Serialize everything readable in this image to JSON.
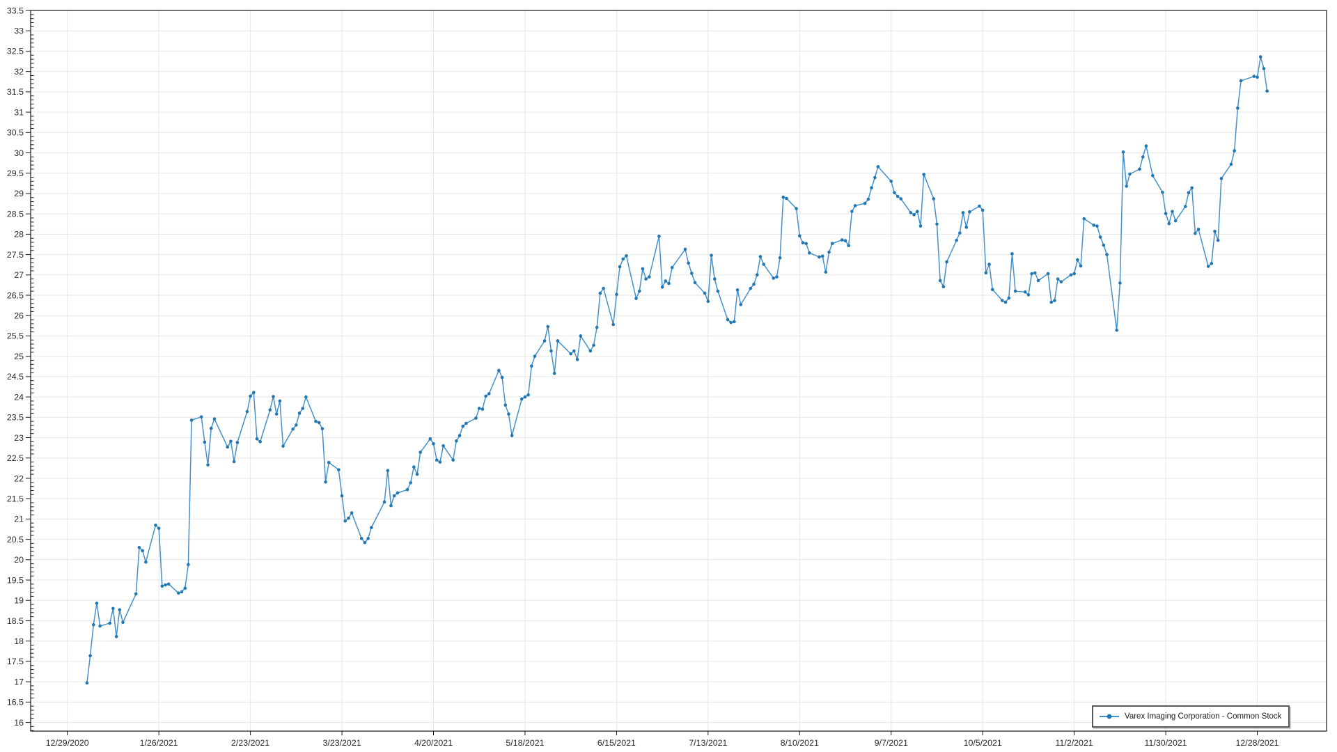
{
  "chart_data": {
    "type": "line",
    "title": "",
    "xlabel": "",
    "ylabel": "",
    "grid": true,
    "legend_position": "bottom-right",
    "ylim": [
      15.79,
      33.5
    ],
    "y_axis": {
      "min": 16,
      "max": 33.5,
      "major_step": 0.5,
      "minor_step": 0.1,
      "tick_labels": [
        "16",
        "16.5",
        "17",
        "17.5",
        "18",
        "18.5",
        "19",
        "19.5",
        "20",
        "20.5",
        "21",
        "21.5",
        "22",
        "22.5",
        "23",
        "23.5",
        "24",
        "24.5",
        "25",
        "25.5",
        "26",
        "26.5",
        "27",
        "27.5",
        "28",
        "28.5",
        "29",
        "29.5",
        "30",
        "30.5",
        "31",
        "31.5",
        "32",
        "32.5",
        "33",
        "33.5"
      ]
    },
    "x_axis": {
      "tick_interval_days": 28,
      "start_date": "2020-12-29",
      "tick_labels": [
        "12/29/2020",
        "1/26/2021",
        "2/23/2021",
        "3/23/2021",
        "4/20/2021",
        "5/18/2021",
        "6/15/2021",
        "7/13/2021",
        "8/10/2021",
        "9/7/2021",
        "10/5/2021",
        "11/2/2021",
        "11/30/2021",
        "12/28/2021"
      ]
    },
    "series": [
      {
        "name": "Varex Imaging Corporation - Common Stock",
        "line_color": "#4590c8",
        "marker_color": "#1f77b4",
        "points": [
          [
            "2021-01-04",
            16.97
          ],
          [
            "2021-01-05",
            17.64
          ],
          [
            "2021-01-06",
            18.4
          ],
          [
            "2021-01-07",
            18.93
          ],
          [
            "2021-01-08",
            18.37
          ],
          [
            "2021-01-11",
            18.44
          ],
          [
            "2021-01-12",
            18.8
          ],
          [
            "2021-01-13",
            18.11
          ],
          [
            "2021-01-14",
            18.77
          ],
          [
            "2021-01-15",
            18.46
          ],
          [
            "2021-01-19",
            19.16
          ],
          [
            "2021-01-20",
            20.3
          ],
          [
            "2021-01-21",
            20.22
          ],
          [
            "2021-01-22",
            19.94
          ],
          [
            "2021-01-25",
            20.85
          ],
          [
            "2021-01-26",
            20.77
          ],
          [
            "2021-01-27",
            19.35
          ],
          [
            "2021-01-28",
            19.38
          ],
          [
            "2021-01-29",
            19.4
          ],
          [
            "2021-02-01",
            19.18
          ],
          [
            "2021-02-02",
            19.21
          ],
          [
            "2021-02-03",
            19.3
          ],
          [
            "2021-02-04",
            19.88
          ],
          [
            "2021-02-05",
            23.43
          ],
          [
            "2021-02-08",
            23.51
          ],
          [
            "2021-02-09",
            22.89
          ],
          [
            "2021-02-10",
            22.33
          ],
          [
            "2021-02-11",
            23.23
          ],
          [
            "2021-02-12",
            23.46
          ],
          [
            "2021-02-16",
            22.77
          ],
          [
            "2021-02-17",
            22.91
          ],
          [
            "2021-02-18",
            22.41
          ],
          [
            "2021-02-19",
            22.88
          ],
          [
            "2021-02-22",
            23.64
          ],
          [
            "2021-02-23",
            24.02
          ],
          [
            "2021-02-24",
            24.11
          ],
          [
            "2021-02-25",
            22.97
          ],
          [
            "2021-02-26",
            22.9
          ],
          [
            "2021-03-01",
            23.68
          ],
          [
            "2021-03-02",
            24.01
          ],
          [
            "2021-03-03",
            23.58
          ],
          [
            "2021-03-04",
            23.9
          ],
          [
            "2021-03-05",
            22.79
          ],
          [
            "2021-03-08",
            23.21
          ],
          [
            "2021-03-09",
            23.31
          ],
          [
            "2021-03-10",
            23.6
          ],
          [
            "2021-03-11",
            23.72
          ],
          [
            "2021-03-12",
            24.0
          ],
          [
            "2021-03-15",
            23.4
          ],
          [
            "2021-03-16",
            23.37
          ],
          [
            "2021-03-17",
            23.22
          ],
          [
            "2021-03-18",
            21.91
          ],
          [
            "2021-03-19",
            22.39
          ],
          [
            "2021-03-22",
            22.21
          ],
          [
            "2021-03-23",
            21.57
          ],
          [
            "2021-03-24",
            20.95
          ],
          [
            "2021-03-25",
            21.02
          ],
          [
            "2021-03-26",
            21.15
          ],
          [
            "2021-03-29",
            20.52
          ],
          [
            "2021-03-30",
            20.42
          ],
          [
            "2021-03-31",
            20.52
          ],
          [
            "2021-04-01",
            20.79
          ],
          [
            "2021-04-05",
            21.42
          ],
          [
            "2021-04-06",
            22.19
          ],
          [
            "2021-04-07",
            21.33
          ],
          [
            "2021-04-08",
            21.57
          ],
          [
            "2021-04-09",
            21.64
          ],
          [
            "2021-04-12",
            21.72
          ],
          [
            "2021-04-13",
            21.89
          ],
          [
            "2021-04-14",
            22.28
          ],
          [
            "2021-04-15",
            22.1
          ],
          [
            "2021-04-16",
            22.64
          ],
          [
            "2021-04-19",
            22.97
          ],
          [
            "2021-04-20",
            22.85
          ],
          [
            "2021-04-21",
            22.45
          ],
          [
            "2021-04-22",
            22.4
          ],
          [
            "2021-04-23",
            22.8
          ],
          [
            "2021-04-26",
            22.45
          ],
          [
            "2021-04-27",
            22.92
          ],
          [
            "2021-04-28",
            23.05
          ],
          [
            "2021-04-29",
            23.28
          ],
          [
            "2021-04-30",
            23.35
          ],
          [
            "2021-05-03",
            23.48
          ],
          [
            "2021-05-04",
            23.72
          ],
          [
            "2021-05-05",
            23.7
          ],
          [
            "2021-05-06",
            24.02
          ],
          [
            "2021-05-07",
            24.08
          ],
          [
            "2021-05-10",
            24.65
          ],
          [
            "2021-05-11",
            24.48
          ],
          [
            "2021-05-12",
            23.8
          ],
          [
            "2021-05-13",
            23.58
          ],
          [
            "2021-05-14",
            23.05
          ],
          [
            "2021-05-17",
            23.95
          ],
          [
            "2021-05-18",
            24.0
          ],
          [
            "2021-05-19",
            24.05
          ],
          [
            "2021-05-20",
            24.76
          ],
          [
            "2021-05-21",
            25.0
          ],
          [
            "2021-05-24",
            25.38
          ],
          [
            "2021-05-25",
            25.73
          ],
          [
            "2021-05-26",
            25.13
          ],
          [
            "2021-05-27",
            24.58
          ],
          [
            "2021-05-28",
            25.38
          ],
          [
            "2021-06-01",
            25.06
          ],
          [
            "2021-06-02",
            25.13
          ],
          [
            "2021-06-03",
            24.92
          ],
          [
            "2021-06-04",
            25.5
          ],
          [
            "2021-06-07",
            25.13
          ],
          [
            "2021-06-08",
            25.27
          ],
          [
            "2021-06-09",
            25.71
          ],
          [
            "2021-06-10",
            26.55
          ],
          [
            "2021-06-11",
            26.67
          ],
          [
            "2021-06-14",
            25.78
          ],
          [
            "2021-06-15",
            26.52
          ],
          [
            "2021-06-16",
            27.2
          ],
          [
            "2021-06-17",
            27.39
          ],
          [
            "2021-06-18",
            27.47
          ],
          [
            "2021-06-21",
            26.42
          ],
          [
            "2021-06-22",
            26.6
          ],
          [
            "2021-06-23",
            27.15
          ],
          [
            "2021-06-24",
            26.9
          ],
          [
            "2021-06-25",
            26.95
          ],
          [
            "2021-06-28",
            27.95
          ],
          [
            "2021-06-29",
            26.7
          ],
          [
            "2021-06-30",
            26.85
          ],
          [
            "2021-07-01",
            26.79
          ],
          [
            "2021-07-02",
            27.18
          ],
          [
            "2021-07-06",
            27.63
          ],
          [
            "2021-07-07",
            27.29
          ],
          [
            "2021-07-08",
            27.04
          ],
          [
            "2021-07-09",
            26.81
          ],
          [
            "2021-07-12",
            26.55
          ],
          [
            "2021-07-13",
            26.35
          ],
          [
            "2021-07-14",
            27.48
          ],
          [
            "2021-07-15",
            26.9
          ],
          [
            "2021-07-16",
            26.6
          ],
          [
            "2021-07-19",
            25.9
          ],
          [
            "2021-07-20",
            25.83
          ],
          [
            "2021-07-21",
            25.85
          ],
          [
            "2021-07-22",
            26.63
          ],
          [
            "2021-07-23",
            26.27
          ],
          [
            "2021-07-26",
            26.67
          ],
          [
            "2021-07-27",
            26.77
          ],
          [
            "2021-07-28",
            27.0
          ],
          [
            "2021-07-29",
            27.45
          ],
          [
            "2021-07-30",
            27.26
          ],
          [
            "2021-08-02",
            26.92
          ],
          [
            "2021-08-03",
            26.95
          ],
          [
            "2021-08-04",
            27.42
          ],
          [
            "2021-08-05",
            28.91
          ],
          [
            "2021-08-06",
            28.88
          ],
          [
            "2021-08-09",
            28.63
          ],
          [
            "2021-08-10",
            27.96
          ],
          [
            "2021-08-11",
            27.79
          ],
          [
            "2021-08-12",
            27.77
          ],
          [
            "2021-08-13",
            27.54
          ],
          [
            "2021-08-16",
            27.44
          ],
          [
            "2021-08-17",
            27.46
          ],
          [
            "2021-08-18",
            27.07
          ],
          [
            "2021-08-19",
            27.56
          ],
          [
            "2021-08-20",
            27.77
          ],
          [
            "2021-08-23",
            27.86
          ],
          [
            "2021-08-24",
            27.84
          ],
          [
            "2021-08-25",
            27.72
          ],
          [
            "2021-08-26",
            28.56
          ],
          [
            "2021-08-27",
            28.7
          ],
          [
            "2021-08-30",
            28.76
          ],
          [
            "2021-08-31",
            28.86
          ],
          [
            "2021-09-01",
            29.14
          ],
          [
            "2021-09-02",
            29.39
          ],
          [
            "2021-09-03",
            29.66
          ],
          [
            "2021-09-07",
            29.3
          ],
          [
            "2021-09-08",
            29.02
          ],
          [
            "2021-09-09",
            28.93
          ],
          [
            "2021-09-10",
            28.87
          ],
          [
            "2021-09-13",
            28.53
          ],
          [
            "2021-09-14",
            28.48
          ],
          [
            "2021-09-15",
            28.56
          ],
          [
            "2021-09-16",
            28.2
          ],
          [
            "2021-09-17",
            29.47
          ],
          [
            "2021-09-20",
            28.87
          ],
          [
            "2021-09-21",
            28.25
          ],
          [
            "2021-09-22",
            26.86
          ],
          [
            "2021-09-23",
            26.71
          ],
          [
            "2021-09-24",
            27.32
          ],
          [
            "2021-09-27",
            27.85
          ],
          [
            "2021-09-28",
            28.03
          ],
          [
            "2021-09-29",
            28.53
          ],
          [
            "2021-09-30",
            28.17
          ],
          [
            "2021-10-01",
            28.55
          ],
          [
            "2021-10-04",
            28.69
          ],
          [
            "2021-10-05",
            28.59
          ],
          [
            "2021-10-06",
            27.05
          ],
          [
            "2021-10-07",
            27.26
          ],
          [
            "2021-10-08",
            26.64
          ],
          [
            "2021-10-11",
            26.37
          ],
          [
            "2021-10-12",
            26.33
          ],
          [
            "2021-10-13",
            26.43
          ],
          [
            "2021-10-14",
            27.52
          ],
          [
            "2021-10-15",
            26.6
          ],
          [
            "2021-10-18",
            26.58
          ],
          [
            "2021-10-19",
            26.51
          ],
          [
            "2021-10-20",
            27.03
          ],
          [
            "2021-10-21",
            27.05
          ],
          [
            "2021-10-22",
            26.86
          ],
          [
            "2021-10-25",
            27.03
          ],
          [
            "2021-10-26",
            26.33
          ],
          [
            "2021-10-27",
            26.37
          ],
          [
            "2021-10-28",
            26.9
          ],
          [
            "2021-10-29",
            26.83
          ],
          [
            "2021-11-01",
            27.0
          ],
          [
            "2021-11-02",
            27.03
          ],
          [
            "2021-11-03",
            27.37
          ],
          [
            "2021-11-04",
            27.22
          ],
          [
            "2021-11-05",
            28.38
          ],
          [
            "2021-11-08",
            28.22
          ],
          [
            "2021-11-09",
            28.2
          ],
          [
            "2021-11-10",
            27.93
          ],
          [
            "2021-11-11",
            27.73
          ],
          [
            "2021-11-12",
            27.5
          ],
          [
            "2021-11-15",
            25.64
          ],
          [
            "2021-11-16",
            26.8
          ],
          [
            "2021-11-17",
            30.02
          ],
          [
            "2021-11-18",
            29.18
          ],
          [
            "2021-11-19",
            29.48
          ],
          [
            "2021-11-22",
            29.6
          ],
          [
            "2021-11-23",
            29.9
          ],
          [
            "2021-11-24",
            30.17
          ],
          [
            "2021-11-26",
            29.44
          ],
          [
            "2021-11-29",
            29.03
          ],
          [
            "2021-11-30",
            28.51
          ],
          [
            "2021-12-01",
            28.26
          ],
          [
            "2021-12-02",
            28.56
          ],
          [
            "2021-12-03",
            28.33
          ],
          [
            "2021-12-06",
            28.68
          ],
          [
            "2021-12-07",
            29.02
          ],
          [
            "2021-12-08",
            29.14
          ],
          [
            "2021-12-09",
            28.02
          ],
          [
            "2021-12-10",
            28.12
          ],
          [
            "2021-12-13",
            27.21
          ],
          [
            "2021-12-14",
            27.28
          ],
          [
            "2021-12-15",
            28.07
          ],
          [
            "2021-12-16",
            27.85
          ],
          [
            "2021-12-17",
            29.37
          ],
          [
            "2021-12-20",
            29.72
          ],
          [
            "2021-12-21",
            30.05
          ],
          [
            "2021-12-22",
            31.1
          ],
          [
            "2021-12-23",
            31.77
          ],
          [
            "2021-12-27",
            31.88
          ],
          [
            "2021-12-28",
            31.86
          ],
          [
            "2021-12-29",
            32.36
          ],
          [
            "2021-12-30",
            32.07
          ],
          [
            "2021-12-31",
            31.52
          ]
        ]
      }
    ]
  },
  "legend": {
    "label": "Varex Imaging Corporation - Common Stock"
  },
  "colors": {
    "background": "#ffffff",
    "plot_border": "#161616",
    "gridline": "#e6e6e6",
    "tick": "#161616",
    "tick_label": "#2b2b2b",
    "line": "#4590c8",
    "marker": "#1f77b4",
    "legend_border": "#58585a",
    "legend_text": "#1a1a1a"
  }
}
